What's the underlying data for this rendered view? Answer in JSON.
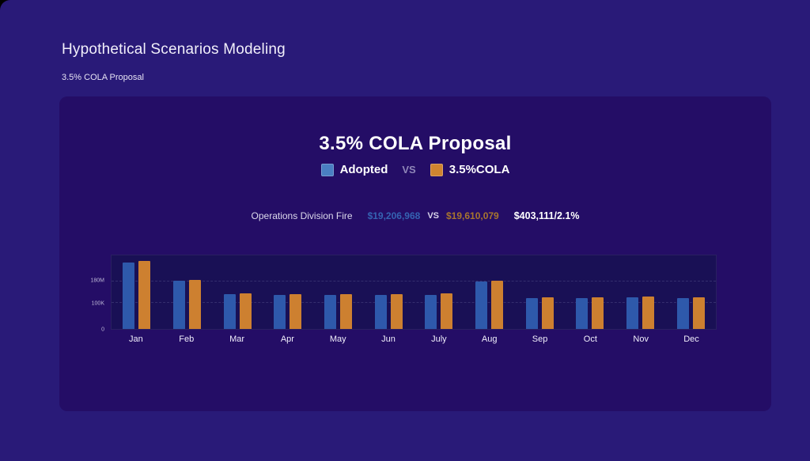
{
  "page": {
    "title": "Hypothetical Scenarios Modeling",
    "subtitle": "3.5% COLA Proposal"
  },
  "card": {
    "title": "3.5% COLA Proposal",
    "legend": {
      "series1": "Adopted",
      "vs": "VS",
      "series2": "3.5%COLA"
    },
    "comparison": {
      "label": "Operations Division Fire",
      "value1": "$19,206,968",
      "vs": "VS",
      "value2": "$19,610,079",
      "diff": "$403,111/2.1%"
    }
  },
  "colors": {
    "page_bg": "#291a78",
    "card_bg": "#240d66",
    "plot_bg": "#191055",
    "adopted_bar": "#2e59ab",
    "cola_bar": "#cd8030",
    "legend_adopted_swatch": "#4a7fc2",
    "legend_cola_swatch": "#d08430",
    "value1_text": "#3563b2",
    "value2_text": "#a8752e"
  },
  "chart_data": {
    "type": "bar",
    "title": "3.5% COLA Proposal",
    "categories": [
      "Jan",
      "Feb",
      "Mar",
      "Apr",
      "May",
      "Jun",
      "July",
      "Aug",
      "Sep",
      "Oct",
      "Nov",
      "Dec"
    ],
    "series": [
      {
        "name": "Adopted",
        "color": "#2e59ab",
        "values_pct": [
          90,
          66,
          47,
          46,
          46,
          46,
          46,
          64,
          42,
          42,
          43,
          42
        ]
      },
      {
        "name": "3.5%COLA",
        "color": "#cd8030",
        "values_pct": [
          92,
          67,
          48,
          47,
          47,
          47,
          48,
          66,
          43,
          43,
          44,
          43
        ]
      }
    ],
    "y_ticks": [
      {
        "label": "180M",
        "pct": 65
      },
      {
        "label": "100K",
        "pct": 35
      },
      {
        "label": "0",
        "pct": 0
      }
    ],
    "legend_position": "top",
    "grid": "horizontal-dashed",
    "note": "values_pct are bar heights as percent of plot-area height; y-axis tick labels as rendered on screen"
  }
}
